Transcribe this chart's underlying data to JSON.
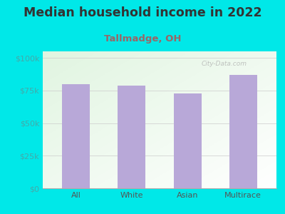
{
  "title": "Median household income in 2022",
  "subtitle": "Tallmadge, OH",
  "categories": [
    "All",
    "White",
    "Asian",
    "Multirace"
  ],
  "values": [
    80000,
    79000,
    73000,
    87000
  ],
  "bar_color": "#b8a8d8",
  "title_color": "#333333",
  "subtitle_color": "#996666",
  "bg_outer": "#00e8e8",
  "yticks": [
    0,
    25000,
    50000,
    75000,
    100000
  ],
  "ytick_labels": [
    "$0",
    "$25k",
    "$50k",
    "$75k",
    "$100k"
  ],
  "ylim": [
    0,
    105000
  ],
  "watermark": "City-Data.com",
  "title_fontsize": 12.5,
  "subtitle_fontsize": 9.5,
  "tick_fontsize": 8,
  "ytick_color": "#44aaaa",
  "xtick_color": "#555555"
}
